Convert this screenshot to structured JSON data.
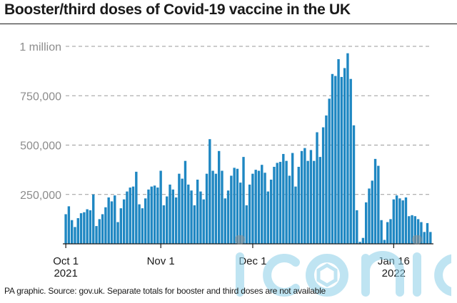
{
  "title": "Booster/third doses of Covid-19 vaccine in the UK",
  "source": "PA graphic. Source: gov.uk. Separate totals for booster and third doses are not available",
  "watermark": "iconic",
  "colors": {
    "bar": "#1f87c2",
    "grid": "#9a9a9a",
    "tick_label": "#8c8c8c",
    "text": "#1a1a1a",
    "watermark": "#8ccfe8"
  },
  "chart_data": {
    "type": "bar",
    "title": "Booster/third doses of Covid-19 vaccine in the UK",
    "xlabel": "",
    "ylabel": "",
    "ylim": [
      0,
      1000000
    ],
    "yticks": [
      250000,
      500000,
      750000,
      1000000
    ],
    "ytick_labels": [
      "250,000",
      "500,000",
      "750,000",
      "1 million"
    ],
    "grid": true,
    "x_start": "2021-10-01",
    "x_end": "2022-01-16",
    "xticks": [
      {
        "date": "2021-10-01",
        "label": "Oct 1",
        "sublabel": "2021"
      },
      {
        "date": "2021-11-01",
        "label": "Nov 1",
        "sublabel": ""
      },
      {
        "date": "2021-12-01",
        "label": "Dec 1",
        "sublabel": ""
      },
      {
        "date": "2022-01-16",
        "label": "Jan 16",
        "sublabel": "2022"
      }
    ],
    "values": [
      150000,
      190000,
      120000,
      85000,
      130000,
      155000,
      160000,
      175000,
      170000,
      250000,
      90000,
      125000,
      150000,
      185000,
      235000,
      215000,
      245000,
      110000,
      180000,
      225000,
      265000,
      285000,
      290000,
      365000,
      200000,
      180000,
      230000,
      275000,
      290000,
      295000,
      285000,
      370000,
      195000,
      240000,
      300000,
      275000,
      235000,
      355000,
      330000,
      420000,
      300000,
      270000,
      195000,
      325000,
      265000,
      225000,
      355000,
      530000,
      370000,
      355000,
      470000,
      370000,
      230000,
      270000,
      345000,
      385000,
      380000,
      310000,
      440000,
      195000,
      300000,
      355000,
      375000,
      370000,
      400000,
      360000,
      265000,
      325000,
      390000,
      410000,
      415000,
      455000,
      420000,
      345000,
      460000,
      290000,
      390000,
      470000,
      485000,
      420000,
      475000,
      420000,
      565000,
      440000,
      590000,
      650000,
      735000,
      860000,
      850000,
      935000,
      845000,
      890000,
      965000,
      835000,
      600000,
      170000,
      10000,
      30000,
      210000,
      280000,
      320000,
      430000,
      395000,
      120000,
      20000,
      110000,
      125000,
      225000,
      245000,
      230000,
      220000,
      235000,
      140000,
      145000,
      140000,
      125000,
      110000,
      60000,
      105000,
      60000
    ]
  }
}
